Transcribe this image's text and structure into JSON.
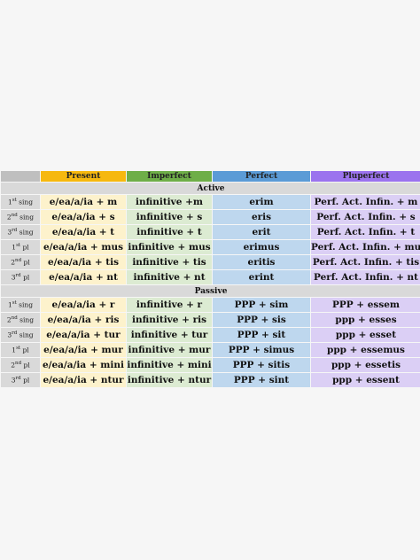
{
  "columns": [
    "Present",
    "Imperfect",
    "Perfect",
    "Pluperfect"
  ],
  "colors": {
    "present": "#f6b80f",
    "imperfect": "#6eae48",
    "perfect": "#5b9bd6",
    "pluperfect": "#9b73ee"
  },
  "active": {
    "title": "Active",
    "rows": [
      {
        "num": "1",
        "sup": "st",
        "word": "sing",
        "cells": [
          "e/ea/a/ia + m",
          "infinitive +m",
          "erim",
          "Perf. Act. Infin. + m"
        ]
      },
      {
        "num": "2",
        "sup": "nd",
        "word": "sing",
        "cells": [
          "e/ea/a/ia + s",
          "infinitive + s",
          "eris",
          "Perf. Act. Infin. + s"
        ]
      },
      {
        "num": "3",
        "sup": "rd",
        "word": "sing",
        "cells": [
          "e/ea/a/ia + t",
          "infinitive + t",
          "erit",
          "Perf. Act. Infin. + t"
        ]
      },
      {
        "num": "1",
        "sup": "st",
        "word": "pl",
        "cells": [
          "e/ea/a/ia + mus",
          "infinitive + mus",
          "erimus",
          "Perf. Act. Infin. + mus"
        ]
      },
      {
        "num": "2",
        "sup": "nd",
        "word": "pl",
        "cells": [
          "e/ea/a/ia + tis",
          "infinitive + tis",
          "eritis",
          "Perf. Act. Infin. + tis"
        ]
      },
      {
        "num": "3",
        "sup": "rd",
        "word": "pl",
        "cells": [
          "e/ea/a/ia + nt",
          "infinitive + nt",
          "erint",
          "Perf. Act. Infin. + nt"
        ]
      }
    ]
  },
  "passive": {
    "title": "Passive",
    "rows": [
      {
        "num": "1",
        "sup": "st",
        "word": "sing",
        "cells": [
          "e/ea/a/ia + r",
          "infinitive + r",
          "PPP + sim",
          "PPP + essem"
        ]
      },
      {
        "num": "2",
        "sup": "nd",
        "word": "sing",
        "cells": [
          "e/ea/a/ia + ris",
          "infinitive + ris",
          "PPP + sis",
          "ppp + esses"
        ]
      },
      {
        "num": "3",
        "sup": "rd",
        "word": "sing",
        "cells": [
          "e/ea/a/ia + tur",
          "infinitive + tur",
          "PPP + sit",
          "ppp + esset"
        ]
      },
      {
        "num": "1",
        "sup": "st",
        "word": "pl",
        "cells": [
          "e/ea/a/ia + mur",
          "infinitive + mur",
          "PPP + simus",
          "ppp + essemus"
        ]
      },
      {
        "num": "2",
        "sup": "nd",
        "word": "pl",
        "cells": [
          "e/ea/a/ia + mini",
          "infinitive + mini",
          "PPP + sitis",
          "ppp + essetis"
        ]
      },
      {
        "num": "3",
        "sup": "rd",
        "word": "pl",
        "cells": [
          "e/ea/a/ia + ntur",
          "infinitive + ntur",
          "PPP + sint",
          "ppp + essent"
        ]
      }
    ]
  }
}
